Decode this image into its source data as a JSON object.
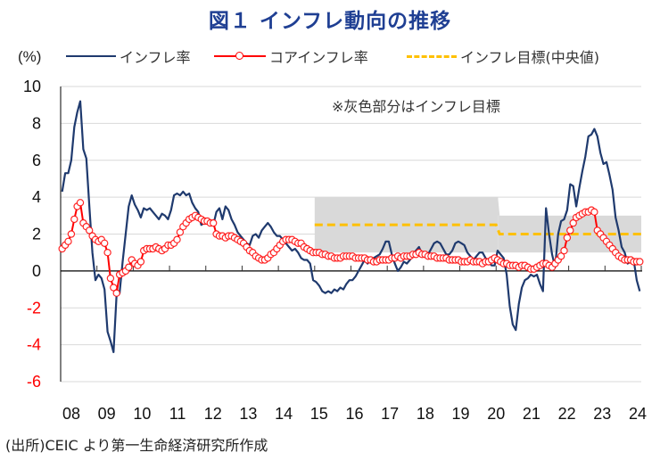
{
  "title": "図１ インフレ動向の推移",
  "unit_label": "(%)",
  "note": "※灰色部分はインフレ目標",
  "source": "(出所)CEIC より第一生命経済研究所作成",
  "colors": {
    "inflation": "#1f3a6e",
    "core": "#ff0000",
    "target": "#ffc000",
    "band": "#d9d9d9",
    "negative_tick": "#ff0000",
    "title": "#1f3f93"
  },
  "chart_data": {
    "type": "line",
    "title": "図１ インフレ動向の推移",
    "ylabel": "(%)",
    "xlabel": "",
    "ylim": [
      -6,
      10
    ],
    "yticks": [
      10,
      8,
      6,
      4,
      2,
      0,
      -2,
      -4,
      -6
    ],
    "ytick_labels": [
      "10",
      "8",
      "6",
      "4",
      "2",
      "0",
      "-2",
      "-4",
      "-6"
    ],
    "x_tick_labels": [
      "08",
      "09",
      "10",
      "11",
      "12",
      "13",
      "14",
      "15",
      "16",
      "17",
      "18",
      "19",
      "20",
      "21",
      "22",
      "23",
      "24"
    ],
    "x_range": [
      2008,
      2024
    ],
    "grid": true,
    "legend": "top",
    "x_start": "2008-01",
    "frequency": "monthly",
    "series": [
      {
        "name": "インフレ率",
        "style": "line",
        "values": [
          4.3,
          5.3,
          5.3,
          6.0,
          7.8,
          8.6,
          9.2,
          6.6,
          6.1,
          3.5,
          1.0,
          -0.5,
          -0.2,
          -0.4,
          -1.0,
          -3.3,
          -3.8,
          -4.4,
          -1.3,
          -1.2,
          0.5,
          2.0,
          3.5,
          4.1,
          3.6,
          3.3,
          2.9,
          3.4,
          3.3,
          3.4,
          3.2,
          3.0,
          2.8,
          3.1,
          3.0,
          2.8,
          3.3,
          4.1,
          4.2,
          4.1,
          4.3,
          4.1,
          4.2,
          3.7,
          3.4,
          3.2,
          2.5,
          2.6,
          2.6,
          2.7,
          2.5,
          3.2,
          3.4,
          2.8,
          3.5,
          3.3,
          2.8,
          2.5,
          2.1,
          1.9,
          1.7,
          1.5,
          1.4,
          1.9,
          2.0,
          1.8,
          2.2,
          2.4,
          2.6,
          2.4,
          2.1,
          1.9,
          1.9,
          1.7,
          1.5,
          1.3,
          1.1,
          1.2,
          1.0,
          0.7,
          0.6,
          0.6,
          0.4,
          -0.5,
          -0.6,
          -0.8,
          -1.1,
          -1.2,
          -1.1,
          -1.2,
          -1.0,
          -1.1,
          -0.9,
          -1.0,
          -0.7,
          -0.5,
          -0.5,
          -0.3,
          0.0,
          0.3,
          0.6,
          0.4,
          0.6,
          0.7,
          0.8,
          0.9,
          1.2,
          1.6,
          1.6,
          0.9,
          0.4,
          0.0,
          0.2,
          0.5,
          0.4,
          0.6,
          0.9,
          1.1,
          1.3,
          0.9,
          0.8,
          0.9,
          1.2,
          1.5,
          1.6,
          1.5,
          1.2,
          0.9,
          0.9,
          1.1,
          1.5,
          1.6,
          1.5,
          1.4,
          1.0,
          0.8,
          0.6,
          0.8,
          1.0,
          1.0,
          0.7,
          0.5,
          0.3,
          0.3,
          1.1,
          0.9,
          0.7,
          -0.2,
          -1.9,
          -2.9,
          -3.2,
          -1.8,
          -0.9,
          -0.5,
          -0.4,
          -0.2,
          -0.3,
          -0.2,
          -0.7,
          -1.1,
          3.4,
          2.0,
          0.9,
          0.2,
          2.0,
          2.7,
          2.8,
          3.3,
          4.7,
          4.6,
          3.5,
          4.5,
          5.4,
          6.2,
          7.3,
          7.4,
          7.7,
          7.3,
          6.4,
          5.8,
          5.9,
          5.2,
          4.4,
          2.9,
          2.2,
          1.3,
          1.0,
          0.4,
          0.5,
          0.6,
          -0.5,
          -1.1
        ]
      },
      {
        "name": "コアインフレ率",
        "style": "line-with-circle-markers",
        "values": [
          1.2,
          1.4,
          1.6,
          2.0,
          2.8,
          3.5,
          3.7,
          2.6,
          2.4,
          2.2,
          1.9,
          1.7,
          1.6,
          1.7,
          1.5,
          1.0,
          -0.4,
          -0.9,
          -1.2,
          -0.2,
          -0.1,
          0.0,
          0.2,
          0.6,
          0.4,
          0.3,
          0.5,
          1.1,
          1.2,
          1.2,
          1.2,
          1.3,
          1.2,
          1.1,
          1.2,
          1.4,
          1.4,
          1.5,
          1.7,
          2.1,
          2.4,
          2.6,
          2.8,
          2.9,
          3.0,
          2.9,
          2.8,
          2.7,
          2.7,
          2.6,
          2.6,
          2.0,
          1.9,
          1.9,
          1.8,
          1.9,
          1.9,
          1.8,
          1.7,
          1.6,
          1.5,
          1.3,
          1.1,
          1.0,
          0.8,
          0.7,
          0.6,
          0.6,
          0.7,
          0.9,
          1.0,
          1.2,
          1.4,
          1.6,
          1.7,
          1.7,
          1.7,
          1.6,
          1.5,
          1.5,
          1.3,
          1.2,
          1.1,
          1.0,
          1.0,
          1.0,
          0.9,
          0.9,
          0.8,
          0.8,
          0.7,
          0.7,
          0.7,
          0.8,
          0.8,
          0.8,
          0.8,
          0.7,
          0.7,
          0.7,
          0.7,
          0.6,
          0.6,
          0.5,
          0.5,
          0.6,
          0.6,
          0.6,
          0.6,
          0.7,
          0.7,
          0.8,
          0.7,
          0.8,
          0.8,
          0.8,
          0.9,
          0.9,
          1.0,
          0.9,
          0.9,
          0.8,
          0.8,
          0.8,
          0.7,
          0.7,
          0.7,
          0.7,
          0.6,
          0.6,
          0.6,
          0.6,
          0.5,
          0.5,
          0.5,
          0.6,
          0.5,
          0.5,
          0.5,
          0.4,
          0.5,
          0.5,
          0.6,
          0.7,
          0.6,
          0.5,
          0.4,
          0.4,
          0.3,
          0.3,
          0.3,
          0.2,
          0.3,
          0.3,
          0.2,
          0.1,
          0.1,
          0.2,
          0.3,
          0.4,
          0.4,
          0.3,
          0.2,
          0.4,
          0.6,
          0.8,
          1.1,
          1.8,
          2.2,
          2.6,
          2.9,
          3.0,
          3.1,
          3.2,
          3.2,
          3.3,
          3.2,
          2.2,
          2.0,
          1.8,
          1.6,
          1.4,
          1.2,
          1.0,
          0.8,
          0.7,
          0.6,
          0.6,
          0.6,
          0.5,
          0.5,
          0.5
        ]
      },
      {
        "name": "インフレ目標(中央値)",
        "style": "dashed",
        "segments": [
          {
            "from": 2015.0,
            "to": 2020.0,
            "value": 2.5
          },
          {
            "from": 2020.0,
            "to": 2024.0,
            "value": 2.0
          }
        ]
      }
    ],
    "target_band": [
      {
        "from": 2015.0,
        "to": 2020.0,
        "lower": 1.0,
        "upper": 4.0
      },
      {
        "from": 2020.0,
        "to": 2024.0,
        "lower": 1.0,
        "upper": 3.0
      }
    ]
  },
  "legend": [
    {
      "label": "インフレ率"
    },
    {
      "label": "コアインフレ率"
    },
    {
      "label": "インフレ目標(中央値)"
    }
  ]
}
